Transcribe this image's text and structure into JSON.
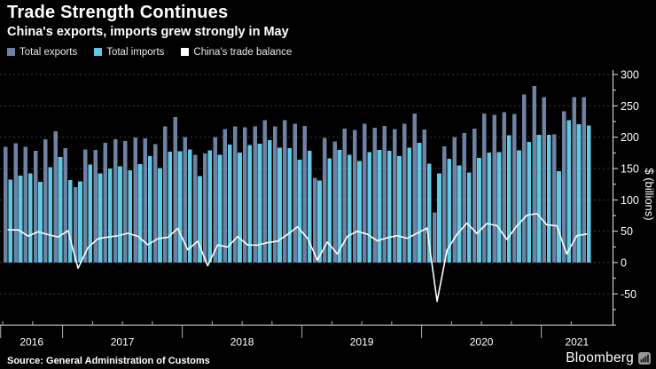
{
  "header": {
    "title": "Trade Strength Continues",
    "subtitle": "China's exports, imports grew strongly in May"
  },
  "footer": {
    "source": "Source: General Administration of Customs",
    "brand": "Bloomberg"
  },
  "colors": {
    "background": "#000000",
    "exports": "#6e82a4",
    "imports": "#5fc9e4",
    "balance": "#ffffff",
    "grid": "#3b3b3b",
    "axis": "#e8e8e8",
    "minor_tick": "#b0b0b0",
    "text": "#ffffff"
  },
  "chart_data": {
    "type": "bar",
    "title": "Trade Strength Continues",
    "subtitle": "China's exports, imports grew strongly in May",
    "xlabel": "",
    "ylabel": "$ (billions)",
    "ylim": [
      -50,
      300
    ],
    "y_tick_step": 50,
    "y_minor_step": 25,
    "grid": true,
    "legend_position": "top-left",
    "x_year_labels": [
      "2016",
      "2017",
      "2018",
      "2019",
      "2020",
      "2021"
    ],
    "months": [
      "2016-07",
      "2016-08",
      "2016-09",
      "2016-10",
      "2016-11",
      "2016-12",
      "2017-01",
      "2017-02",
      "2017-03",
      "2017-04",
      "2017-05",
      "2017-06",
      "2017-07",
      "2017-08",
      "2017-09",
      "2017-10",
      "2017-11",
      "2017-12",
      "2018-01",
      "2018-02",
      "2018-03",
      "2018-04",
      "2018-05",
      "2018-06",
      "2018-07",
      "2018-08",
      "2018-09",
      "2018-10",
      "2018-11",
      "2018-12",
      "2019-01",
      "2019-02",
      "2019-03",
      "2019-04",
      "2019-05",
      "2019-06",
      "2019-07",
      "2019-08",
      "2019-09",
      "2019-10",
      "2019-11",
      "2019-12",
      "2020-01",
      "2020-02",
      "2020-03",
      "2020-04",
      "2020-05",
      "2020-06",
      "2020-07",
      "2020-08",
      "2020-09",
      "2020-10",
      "2020-11",
      "2020-12",
      "2021-01",
      "2021-02",
      "2021-03",
      "2021-04",
      "2021-05"
    ],
    "series": [
      {
        "name": "Total exports",
        "type": "bar",
        "color_key": "exports",
        "values": [
          184.7,
          190.6,
          184.5,
          178.2,
          196.8,
          209.4,
          182.7,
          120.1,
          180.6,
          180.0,
          191.0,
          196.6,
          193.6,
          199.2,
          198.0,
          188.9,
          217.4,
          231.8,
          200.5,
          171.6,
          174.0,
          200.4,
          212.9,
          217.0,
          215.6,
          217.4,
          226.9,
          217.3,
          227.4,
          221.2,
          217.6,
          135.2,
          198.7,
          193.5,
          213.9,
          211.8,
          221.6,
          214.8,
          218.1,
          212.9,
          221.7,
          237.7,
          212.5,
          80.0,
          185.2,
          200.3,
          206.8,
          213.6,
          237.6,
          235.3,
          239.8,
          237.2,
          268.1,
          281.9,
          263.9,
          204.6,
          241.1,
          263.9,
          263.9
        ]
      },
      {
        "name": "Total imports",
        "type": "bar",
        "color_key": "imports",
        "values": [
          132.4,
          138.5,
          142.2,
          129.0,
          152.2,
          168.6,
          131.9,
          129.2,
          156.5,
          141.9,
          150.3,
          153.8,
          146.9,
          157.3,
          169.7,
          150.7,
          177.2,
          177.3,
          180.2,
          137.7,
          179.0,
          172.2,
          188.2,
          175.6,
          187.5,
          189.5,
          195.2,
          183.2,
          182.6,
          164.2,
          178.5,
          131.1,
          166.0,
          179.7,
          172.1,
          161.9,
          176.4,
          180.0,
          178.6,
          170.0,
          183.0,
          190.9,
          157.5,
          142.0,
          165.3,
          154.9,
          143.9,
          167.2,
          175.3,
          176.4,
          202.8,
          178.7,
          192.6,
          203.7,
          203.7,
          145.9,
          227.3,
          221.1,
          218.4
        ]
      },
      {
        "name": "China's trade balance",
        "type": "line",
        "color_key": "balance",
        "values": [
          52.3,
          52.1,
          42.3,
          49.2,
          44.6,
          40.8,
          50.8,
          -9.1,
          24.1,
          38.1,
          40.7,
          42.8,
          46.7,
          41.9,
          28.3,
          38.2,
          40.2,
          54.5,
          20.3,
          33.9,
          -5.0,
          28.2,
          24.7,
          41.4,
          28.1,
          27.9,
          31.7,
          34.1,
          44.8,
          57.0,
          39.1,
          4.1,
          32.7,
          13.8,
          41.8,
          49.9,
          45.2,
          34.8,
          39.5,
          42.9,
          38.7,
          46.8,
          55.0,
          -62.0,
          19.9,
          45.4,
          62.9,
          46.4,
          62.3,
          58.9,
          37.0,
          58.5,
          75.5,
          78.2,
          60.2,
          58.7,
          13.8,
          42.8,
          45.5
        ]
      }
    ]
  }
}
